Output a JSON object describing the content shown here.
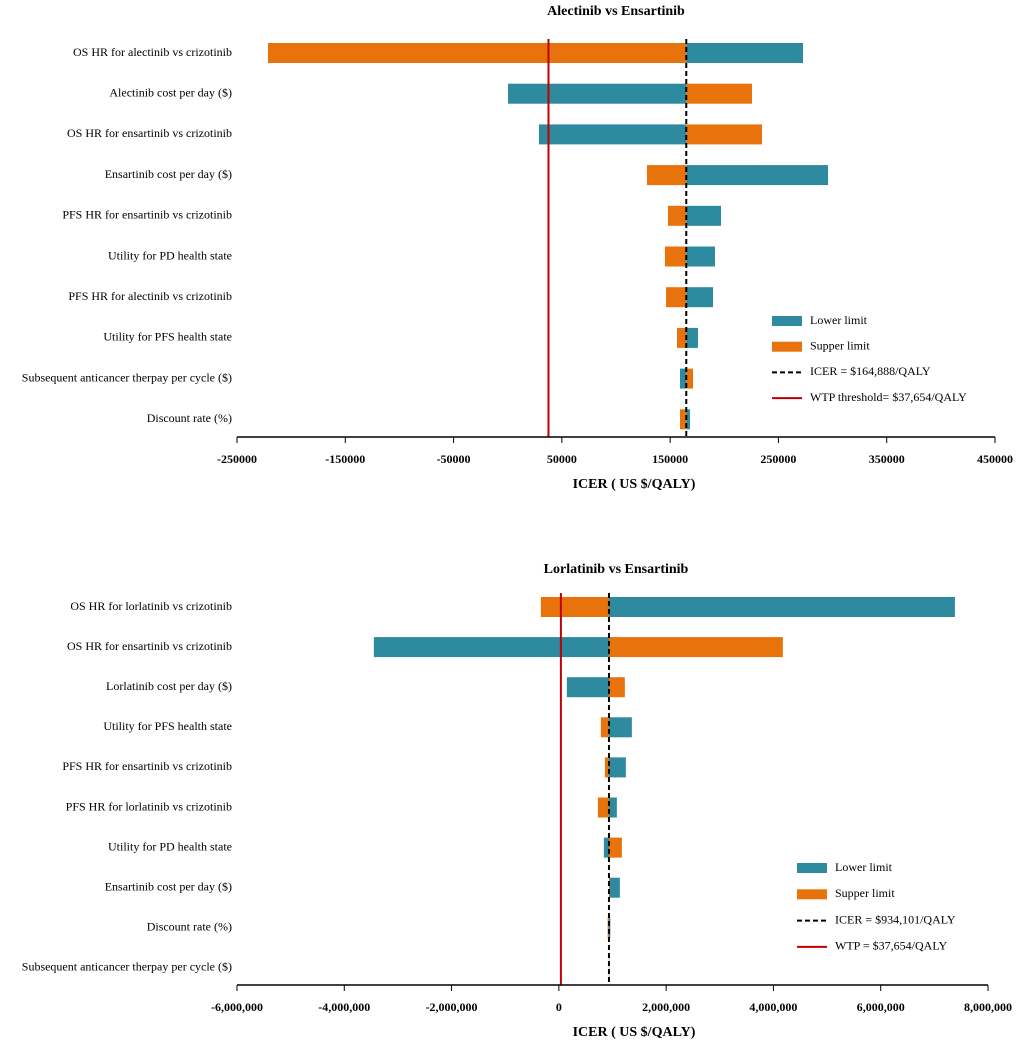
{
  "chart_data": [
    {
      "type": "tornado",
      "title": "Alectinib vs Ensartinib",
      "xlabel": "ICER ( US $/QALY)",
      "categories": [
        "OS HR for alectinib vs crizotinib",
        "Alectinib cost per day  ($)",
        "OS HR for ensartinib vs crizotinib",
        "Ensartinib cost per day ($)",
        "PFS HR for ensartinib vs crizotinib",
        "Utility for PD health state",
        "PFS HR for alectinib vs crizotinib",
        "Utility for PFS health state",
        "Subsequent anticancer therpay per cycle  ($)",
        "Discount rate (%)"
      ],
      "series": [
        {
          "name": "Lower limit",
          "color": "#2e8a9e",
          "values": [
            272700,
            250,
            28900,
            295800,
            197000,
            191400,
            189600,
            175700,
            159100,
            168300
          ]
        },
        {
          "name": "Supper limit",
          "color": "#e8720c",
          "values": [
            -221400,
            225600,
            234800,
            128600,
            148000,
            145200,
            146200,
            156300,
            171100,
            159100
          ]
        }
      ],
      "reference_lines": [
        {
          "name": "ICER = $164,888/QALY",
          "value": 164888,
          "color": "#000000",
          "style": "dashed"
        },
        {
          "name": "WTP threshold= $37,654/QALY",
          "value": 37654,
          "color": "#c00000",
          "style": "solid"
        }
      ],
      "xlim": [
        -250000,
        450000
      ],
      "xticks": [
        -250000,
        -150000,
        -50000,
        50000,
        150000,
        250000,
        350000,
        450000
      ],
      "negative_tick_color": "#e00000"
    },
    {
      "type": "tornado",
      "title": "Lorlatinib vs Ensartinib",
      "xlabel": "ICER ( US $/QALY)",
      "categories": [
        "OS HR for lorlatinib vs crizotinib",
        "OS HR for ensartinib vs crizotinib",
        "Lorlatinib cost per day  ($)",
        "Utility for PFS health state",
        "PFS HR for ensartinib vs crizotinib",
        "PFS HR for lorlatinib vs crizotinib",
        "Utility for PD health state",
        "Ensartinib cost per day ($)",
        "Discount rate (%)",
        "Subsequent anticancer therpay per cycle  ($)"
      ],
      "series": [
        {
          "name": "Lower limit",
          "color": "#2e8a9e",
          "values": [
            7383000,
            -3449000,
            149000,
            1361000,
            1249000,
            1081000,
            839000,
            1137000,
            960000,
            930000
          ]
        },
        {
          "name": "Supper limit",
          "color": "#e8720c",
          "values": [
            -335000,
            4176000,
            1230000,
            783000,
            858000,
            727000,
            1175000,
            951000,
            910000,
            940000
          ]
        }
      ],
      "reference_lines": [
        {
          "name": "ICER = $934,101/QALY",
          "value": 934101,
          "color": "#000000",
          "style": "dashed"
        },
        {
          "name": "WTP = $37,654/QALY",
          "value": 37654,
          "color": "#c00000",
          "style": "solid"
        }
      ],
      "xlim": [
        -6000000,
        8000000
      ],
      "xticks": [
        {
          "value": -6000000,
          "label": "-6,000,000"
        },
        {
          "value": -4000000,
          "label": "-4,000,000"
        },
        {
          "value": -2000000,
          "label": "-2,000,000"
        },
        0,
        {
          "value": 2000000,
          "label": "2,000,000"
        },
        {
          "value": 4000000,
          "label": "4,000,000"
        },
        {
          "value": 6000000,
          "label": "6,000,000"
        },
        {
          "value": 8000000,
          "label": "8,000,000"
        }
      ],
      "negative_tick_color": "#e00000"
    }
  ]
}
